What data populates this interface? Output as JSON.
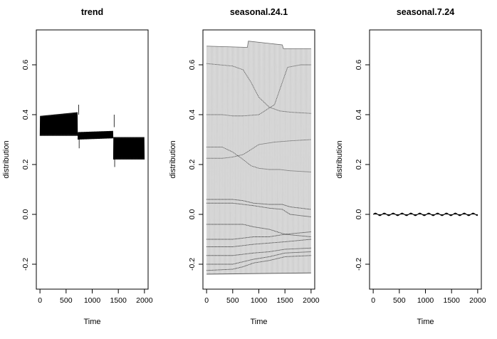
{
  "chart_data": [
    {
      "type": "line",
      "title": "trend",
      "xlabel": "Time",
      "ylabel": "distribution",
      "xlim": [
        -70,
        2070
      ],
      "ylim": [
        -0.3,
        0.74
      ],
      "xticks": [
        0,
        500,
        1000,
        1500,
        2000
      ],
      "yticks": [
        -0.2,
        0.0,
        0.2,
        0.4,
        0.6
      ],
      "xtick_labels": [
        "0",
        "500",
        "1000",
        "1500",
        "2000"
      ],
      "ytick_labels": [
        "-0.2",
        "0.0",
        "0.2",
        "0.4",
        "0.6"
      ],
      "color": "#000000",
      "series": [
        {
          "segments": [
            {
              "x": [
                0,
                720
              ],
              "low_start": 0.315,
              "low_end": 0.315,
              "high_start": 0.395,
              "high_end": 0.41
            },
            {
              "x": [
                725,
                1400
              ],
              "low_start": 0.3,
              "low_end": 0.305,
              "high_start": 0.33,
              "high_end": 0.335
            },
            {
              "x": [
                1405,
                2000
              ],
              "low_start": 0.22,
              "low_end": 0.22,
              "high_start": 0.31,
              "high_end": 0.31
            }
          ],
          "spikes": [
            {
              "x": 740,
              "y": 0.44
            },
            {
              "x": 750,
              "y": 0.265
            },
            {
              "x": 1420,
              "y": 0.35
            },
            {
              "x": 1430,
              "y": 0.19
            }
          ]
        }
      ]
    },
    {
      "type": "line",
      "title": "seasonal.24.1",
      "xlabel": "Time",
      "ylabel": "distribution",
      "xlim": [
        -70,
        2070
      ],
      "ylim": [
        -0.3,
        0.74
      ],
      "xticks": [
        0,
        500,
        1000,
        1500,
        2000
      ],
      "yticks": [
        -0.2,
        0.0,
        0.2,
        0.4,
        0.6
      ],
      "xtick_labels": [
        "0",
        "500",
        "1000",
        "1500",
        "2000"
      ],
      "ytick_labels": [
        "-0.2",
        "0.0",
        "0.2",
        "0.4",
        "0.6"
      ],
      "color": "#000000",
      "upper_envelope": {
        "x": [
          0,
          780,
          800,
          1450,
          1470,
          2000
        ],
        "y": [
          0.675,
          0.67,
          0.695,
          0.68,
          0.665,
          0.665
        ]
      },
      "lower_envelope": {
        "x": [
          0,
          2000
        ],
        "y": [
          -0.24,
          -0.235
        ]
      },
      "series": [
        {
          "x": [
            0,
            250,
            500,
            700,
            850,
            1000,
            1200,
            1400,
            1600,
            2000
          ],
          "y": [
            0.605,
            0.6,
            0.595,
            0.58,
            0.53,
            0.47,
            0.43,
            0.415,
            0.41,
            0.405
          ]
        },
        {
          "x": [
            0,
            300,
            500,
            700,
            1000,
            1300,
            1450,
            1550,
            1800,
            2000
          ],
          "y": [
            0.4,
            0.4,
            0.395,
            0.395,
            0.4,
            0.44,
            0.53,
            0.59,
            0.6,
            0.6
          ]
        },
        {
          "x": [
            0,
            300,
            500,
            700,
            850,
            1000,
            1200,
            1400,
            1600,
            2000
          ],
          "y": [
            0.27,
            0.27,
            0.25,
            0.22,
            0.195,
            0.185,
            0.18,
            0.18,
            0.175,
            0.17
          ]
        },
        {
          "x": [
            0,
            300,
            500,
            700,
            850,
            1000,
            1300,
            1600,
            2000
          ],
          "y": [
            0.225,
            0.225,
            0.23,
            0.24,
            0.26,
            0.28,
            0.29,
            0.295,
            0.3
          ]
        },
        {
          "x": [
            0,
            500,
            700,
            900,
            1200,
            1450,
            1600,
            2000
          ],
          "y": [
            0.06,
            0.06,
            0.055,
            0.045,
            0.04,
            0.04,
            0.03,
            0.02
          ]
        },
        {
          "x": [
            0,
            500,
            700,
            900,
            1200,
            1450,
            1600,
            2000
          ],
          "y": [
            0.045,
            0.045,
            0.04,
            0.035,
            0.025,
            0.02,
            0.0,
            -0.01
          ]
        },
        {
          "x": [
            0,
            500,
            700,
            900,
            1200,
            1500,
            2000
          ],
          "y": [
            -0.04,
            -0.04,
            -0.04,
            -0.05,
            -0.06,
            -0.08,
            -0.09
          ]
        },
        {
          "x": [
            0,
            500,
            700,
            900,
            1200,
            1500,
            2000
          ],
          "y": [
            -0.1,
            -0.1,
            -0.095,
            -0.09,
            -0.09,
            -0.08,
            -0.07
          ]
        },
        {
          "x": [
            0,
            500,
            700,
            900,
            1200,
            1500,
            2000
          ],
          "y": [
            -0.13,
            -0.13,
            -0.125,
            -0.12,
            -0.115,
            -0.11,
            -0.1
          ]
        },
        {
          "x": [
            0,
            500,
            700,
            900,
            1200,
            1500,
            2000
          ],
          "y": [
            -0.165,
            -0.165,
            -0.16,
            -0.155,
            -0.15,
            -0.14,
            -0.135
          ]
        },
        {
          "x": [
            0,
            500,
            700,
            900,
            1200,
            1500,
            2000
          ],
          "y": [
            -0.2,
            -0.2,
            -0.19,
            -0.18,
            -0.17,
            -0.155,
            -0.15
          ]
        },
        {
          "x": [
            0,
            500,
            700,
            900,
            1200,
            1500,
            2000
          ],
          "y": [
            -0.225,
            -0.22,
            -0.21,
            -0.195,
            -0.185,
            -0.17,
            -0.165
          ]
        }
      ]
    },
    {
      "type": "line",
      "title": "seasonal.7.24",
      "xlabel": "Time",
      "ylabel": "distribution",
      "xlim": [
        -70,
        2070
      ],
      "ylim": [
        -0.3,
        0.74
      ],
      "xticks": [
        0,
        500,
        1000,
        1500,
        2000
      ],
      "yticks": [
        -0.2,
        0.0,
        0.2,
        0.4,
        0.6
      ],
      "xtick_labels": [
        "0",
        "500",
        "1000",
        "1500",
        "2000"
      ],
      "ytick_labels": [
        "-0.2",
        "0.0",
        "0.2",
        "0.4",
        "0.6"
      ],
      "color": "#000000",
      "series": [
        {
          "x": [
            0,
            2000
          ],
          "y_center": 0.0,
          "amplitude": 0.004,
          "period": 170
        }
      ]
    }
  ]
}
